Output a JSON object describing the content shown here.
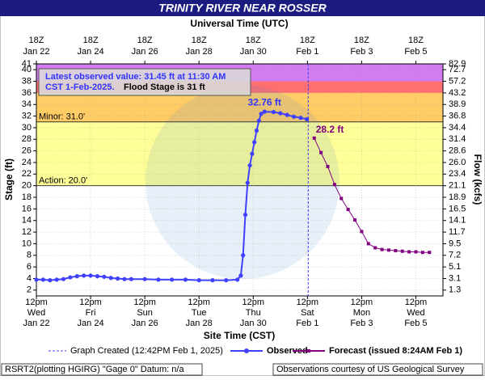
{
  "chart_data": {
    "type": "line",
    "title": "TRINITY RIVER NEAR ROSSER",
    "top_axis_label": "Universal Time (UTC)",
    "x_label": "Site Time (CST)",
    "y_label": "Stage (ft)",
    "y2_label": "Flow (kcfs)",
    "xlim": [
      "Jan 22 12:00",
      "Feb 6 12:00"
    ],
    "ylim": [
      1,
      41
    ],
    "yticks": [
      2,
      4,
      6,
      8,
      10,
      12,
      14,
      16,
      18,
      20,
      22,
      24,
      26,
      28,
      30,
      32,
      34,
      36,
      38,
      40,
      41
    ],
    "y2ticks": [
      1.3,
      3.1,
      5.1,
      7.2,
      9.5,
      11.7,
      14.1,
      16.5,
      18.9,
      21.1,
      23.4,
      {
        "value": 26,
        "label": "26.0"
      },
      28.6,
      31.4,
      34.4,
      36.8,
      38.9,
      43.2,
      57.2,
      72.7,
      82.9
    ],
    "xticks": [
      {
        "value": "Jan 22 12:00",
        "label": [
          "12pm",
          "Wed",
          "Jan 22"
        ]
      },
      {
        "value": "Jan 24 12:00",
        "label": [
          "12pm",
          "Fri",
          "Jan 24"
        ]
      },
      {
        "value": "Jan 26 12:00",
        "label": [
          "12pm",
          "Sun",
          "Jan 26"
        ]
      },
      {
        "value": "Jan 28 12:00",
        "label": [
          "12pm",
          "Tue",
          "Jan 28"
        ]
      },
      {
        "value": "Jan 30 12:00",
        "label": [
          "12pm",
          "Thu",
          "Jan 30"
        ]
      },
      {
        "value": "Feb 1 12:00",
        "label": [
          "12pm",
          "Sat",
          "Feb 1"
        ]
      },
      {
        "value": "Feb 3 12:00",
        "label": [
          "12pm",
          "Mon",
          "Feb 3"
        ]
      },
      {
        "value": "Feb 5 12:00",
        "label": [
          "12pm",
          "Wed",
          "Feb 5"
        ]
      }
    ],
    "x2ticks": [
      {
        "value": "Jan 22 12:00",
        "label": [
          "18Z",
          "Jan 22"
        ]
      },
      {
        "value": "Jan 24 12:00",
        "label": [
          "18Z",
          "Jan 24"
        ]
      },
      {
        "value": "Jan 26 12:00",
        "label": [
          "18Z",
          "Jan 26"
        ]
      },
      {
        "value": "Jan 28 12:00",
        "label": [
          "18Z",
          "Jan 28"
        ]
      },
      {
        "value": "Jan 30 12:00",
        "label": [
          "18Z",
          "Jan 30"
        ]
      },
      {
        "value": "Feb 1 12:00",
        "label": [
          "18Z",
          "Feb  1"
        ]
      },
      {
        "value": "Feb 3 12:00",
        "label": [
          "18Z",
          "Feb  3"
        ]
      },
      {
        "value": "Feb 5 12:00",
        "label": [
          "18Z",
          "Feb  5"
        ]
      }
    ],
    "grid": true,
    "flood_categories": [
      {
        "value": 20,
        "label": "Action: 20.0'",
        "color": "#ffff99"
      },
      {
        "value": 31,
        "label": "Minor: 31.0'",
        "color": "#ffcc66"
      },
      {
        "value": 36,
        "color": "#ff6f6f"
      },
      {
        "value": 38,
        "color": "#d27cf0"
      }
    ],
    "annotation": [
      "Latest observed value: 31.45 ft at 11:30 AM",
      "CST 1-Feb-2025.",
      "Flood Stage is 31 ft"
    ],
    "created_time": "Feb 1 12:42",
    "created_label": "Graph Created (12:42PM Feb 1, 2025)",
    "series": [
      {
        "name": "Observed",
        "color": "#4040ff",
        "marker": "circle",
        "x": [
          "Jan 22 12:00",
          "Jan 22 18:00",
          "Jan 23 00:00",
          "Jan 23 06:00",
          "Jan 23 12:00",
          "Jan 23 18:00",
          "Jan 24 00:00",
          "Jan 24 06:00",
          "Jan 24 12:00",
          "Jan 24 18:00",
          "Jan 25 00:00",
          "Jan 25 06:00",
          "Jan 25 12:00",
          "Jan 25 18:00",
          "Jan 26 00:00",
          "Jan 26 12:00",
          "Jan 27 00:00",
          "Jan 27 12:00",
          "Jan 28 00:00",
          "Jan 28 12:00",
          "Jan 29 00:00",
          "Jan 29 12:00",
          "Jan 29 22:00",
          "Jan 30 01:00",
          "Jan 30 03:00",
          "Jan 30 05:00",
          "Jan 30 07:00",
          "Jan 30 09:00",
          "Jan 30 11:00",
          "Jan 30 13:00",
          "Jan 30 15:00",
          "Jan 30 17:00",
          "Jan 30 19:00",
          "Jan 30 22:00",
          "Jan 31 06:00",
          "Jan 31 12:00",
          "Jan 31 18:00",
          "Feb 1 00:00",
          "Feb 1 06:00",
          "Feb 1 11:30"
        ],
        "values": [
          3.8,
          3.8,
          3.7,
          3.8,
          3.9,
          4.2,
          4.4,
          4.5,
          4.5,
          4.4,
          4.3,
          4.1,
          4.0,
          3.9,
          3.9,
          3.9,
          3.8,
          3.8,
          3.8,
          3.7,
          3.7,
          3.7,
          3.8,
          4.5,
          8.0,
          15.0,
          20.5,
          23.5,
          25.5,
          27.5,
          29.5,
          31.2,
          32.4,
          32.76,
          32.7,
          32.5,
          32.2,
          31.9,
          31.7,
          31.45
        ],
        "value_labels": [
          null,
          null,
          null,
          null,
          null,
          null,
          null,
          null,
          null,
          null,
          null,
          null,
          null,
          null,
          null,
          null,
          null,
          null,
          null,
          null,
          null,
          null,
          null,
          null,
          null,
          null,
          null,
          null,
          null,
          null,
          null,
          null,
          null,
          "32.76 ft",
          null,
          null,
          null,
          null,
          null,
          null
        ]
      },
      {
        "name": "Forecast (issued 8:24AM Feb 1)",
        "color": "#800080",
        "marker": "square",
        "x": [
          "Feb 1 18:00",
          "Feb 2 00:00",
          "Feb 2 06:00",
          "Feb 2 12:00",
          "Feb 2 18:00",
          "Feb 3 00:00",
          "Feb 3 06:00",
          "Feb 3 12:00",
          "Feb 3 18:00",
          "Feb 4 00:00",
          "Feb 4 06:00",
          "Feb 4 12:00",
          "Feb 4 18:00",
          "Feb 5 00:00",
          "Feb 5 06:00",
          "Feb 5 12:00",
          "Feb 5 18:00",
          "Feb 6 00:00"
        ],
        "values": [
          28.2,
          25.7,
          23.3,
          20.2,
          17.8,
          15.9,
          14.1,
          12.1,
          10.0,
          9.3,
          9.0,
          8.9,
          8.8,
          8.7,
          8.6,
          8.6,
          8.5,
          8.5
        ],
        "value_labels": [
          "28.2 ft",
          null,
          null,
          null,
          null,
          null,
          null,
          null,
          null,
          null,
          null,
          null,
          null,
          null,
          null,
          null,
          null,
          null
        ]
      }
    ],
    "footer_left": "RSRT2(plotting HGIRG) \"Gage 0\" Datum: n/a",
    "footer_right": "Observations courtesy of US Geological Survey"
  }
}
